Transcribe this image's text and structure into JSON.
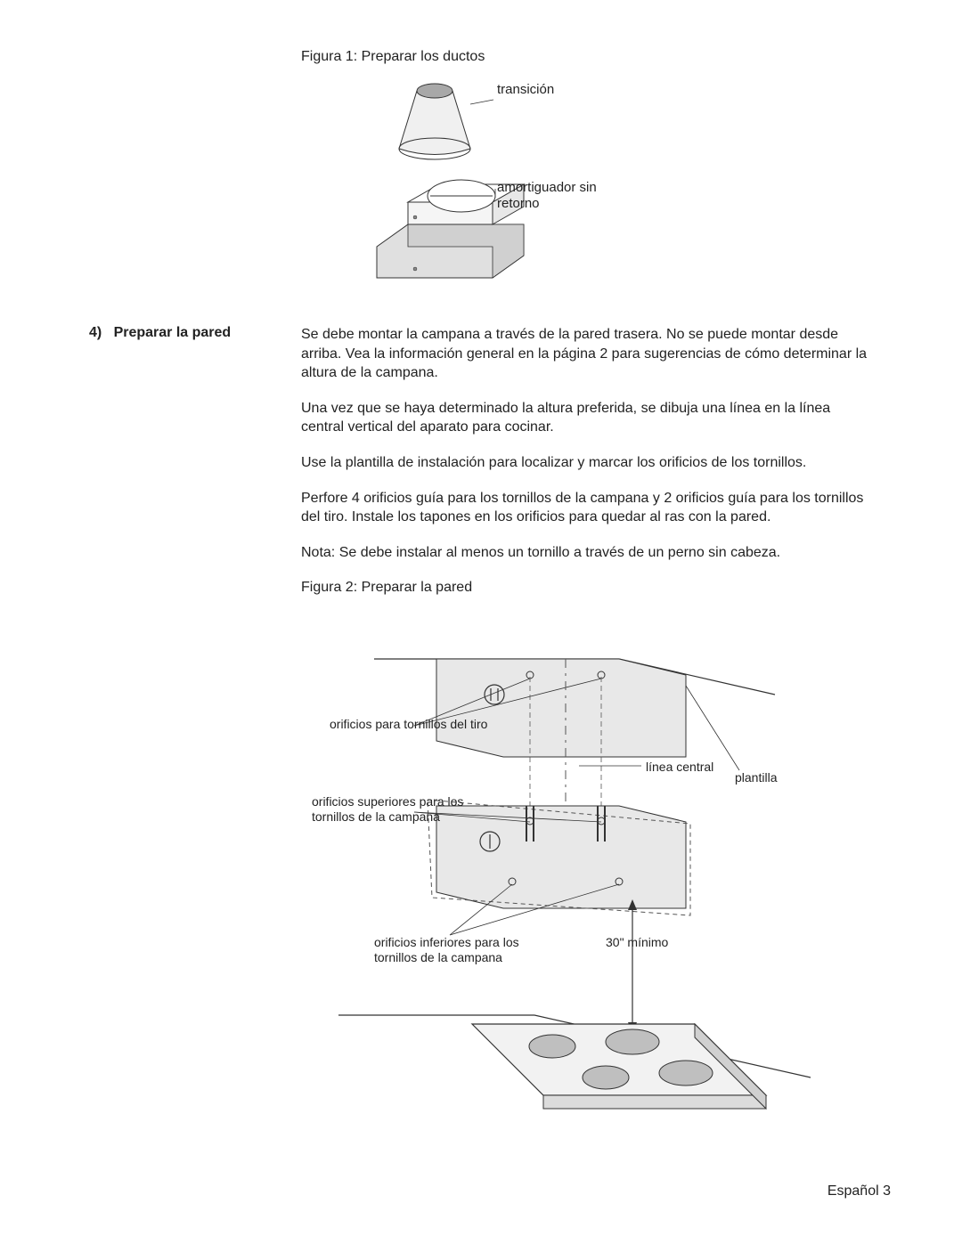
{
  "figure1": {
    "caption": "Figura 1: Preparar los ductos",
    "labels": {
      "transition": "transición",
      "damper": "amortiguador sin\nretorno"
    },
    "colors": {
      "cone_fill": "#f0f0f0",
      "cone_top": "#a8a8a8",
      "box_fill": "#e0e0e0",
      "damper_fill": "#ffffff",
      "outline": "#333333"
    }
  },
  "section4": {
    "number": "4)",
    "heading": "Preparar la pared",
    "paragraphs": [
      "Se debe montar la campana a través de la pared trasera. No se puede montar desde arriba. Vea la información general en la página 2 para sugerencias de cómo determinar la altura de la campana.",
      "Una vez que se haya determinado la altura preferida, se dibuja una línea en la línea central vertical del aparato para cocinar.",
      "Use la plantilla de instalación para localizar y marcar los orificios de los tornillos.",
      "Perfore 4 orificios guía para los tornillos de la campana y 2 orificios guía para los tornillos del tiro. Instale los tapones en los orificios para quedar al ras con la pared.",
      "Nota: Se debe instalar al menos un tornillo a través de un perno sin cabeza."
    ]
  },
  "figure2": {
    "caption": "Figura 2: Preparar la pared",
    "labels": {
      "duct_holes": "orificios para tornillos del tiro",
      "center_line": "línea central",
      "template": "plantilla",
      "upper_holes": "orificios superiores para los tornillos de la campana",
      "lower_holes": "orificios inferiores para los tornillos de la campana",
      "min_distance": "30\" mínimo"
    },
    "colors": {
      "panel_fill": "#e8e8e8",
      "cooktop_fill": "#f2f2f2",
      "burner_fill": "#bfbfbf",
      "outline": "#333333",
      "dash": "#555555"
    }
  },
  "footer": {
    "text": "Español 3"
  }
}
